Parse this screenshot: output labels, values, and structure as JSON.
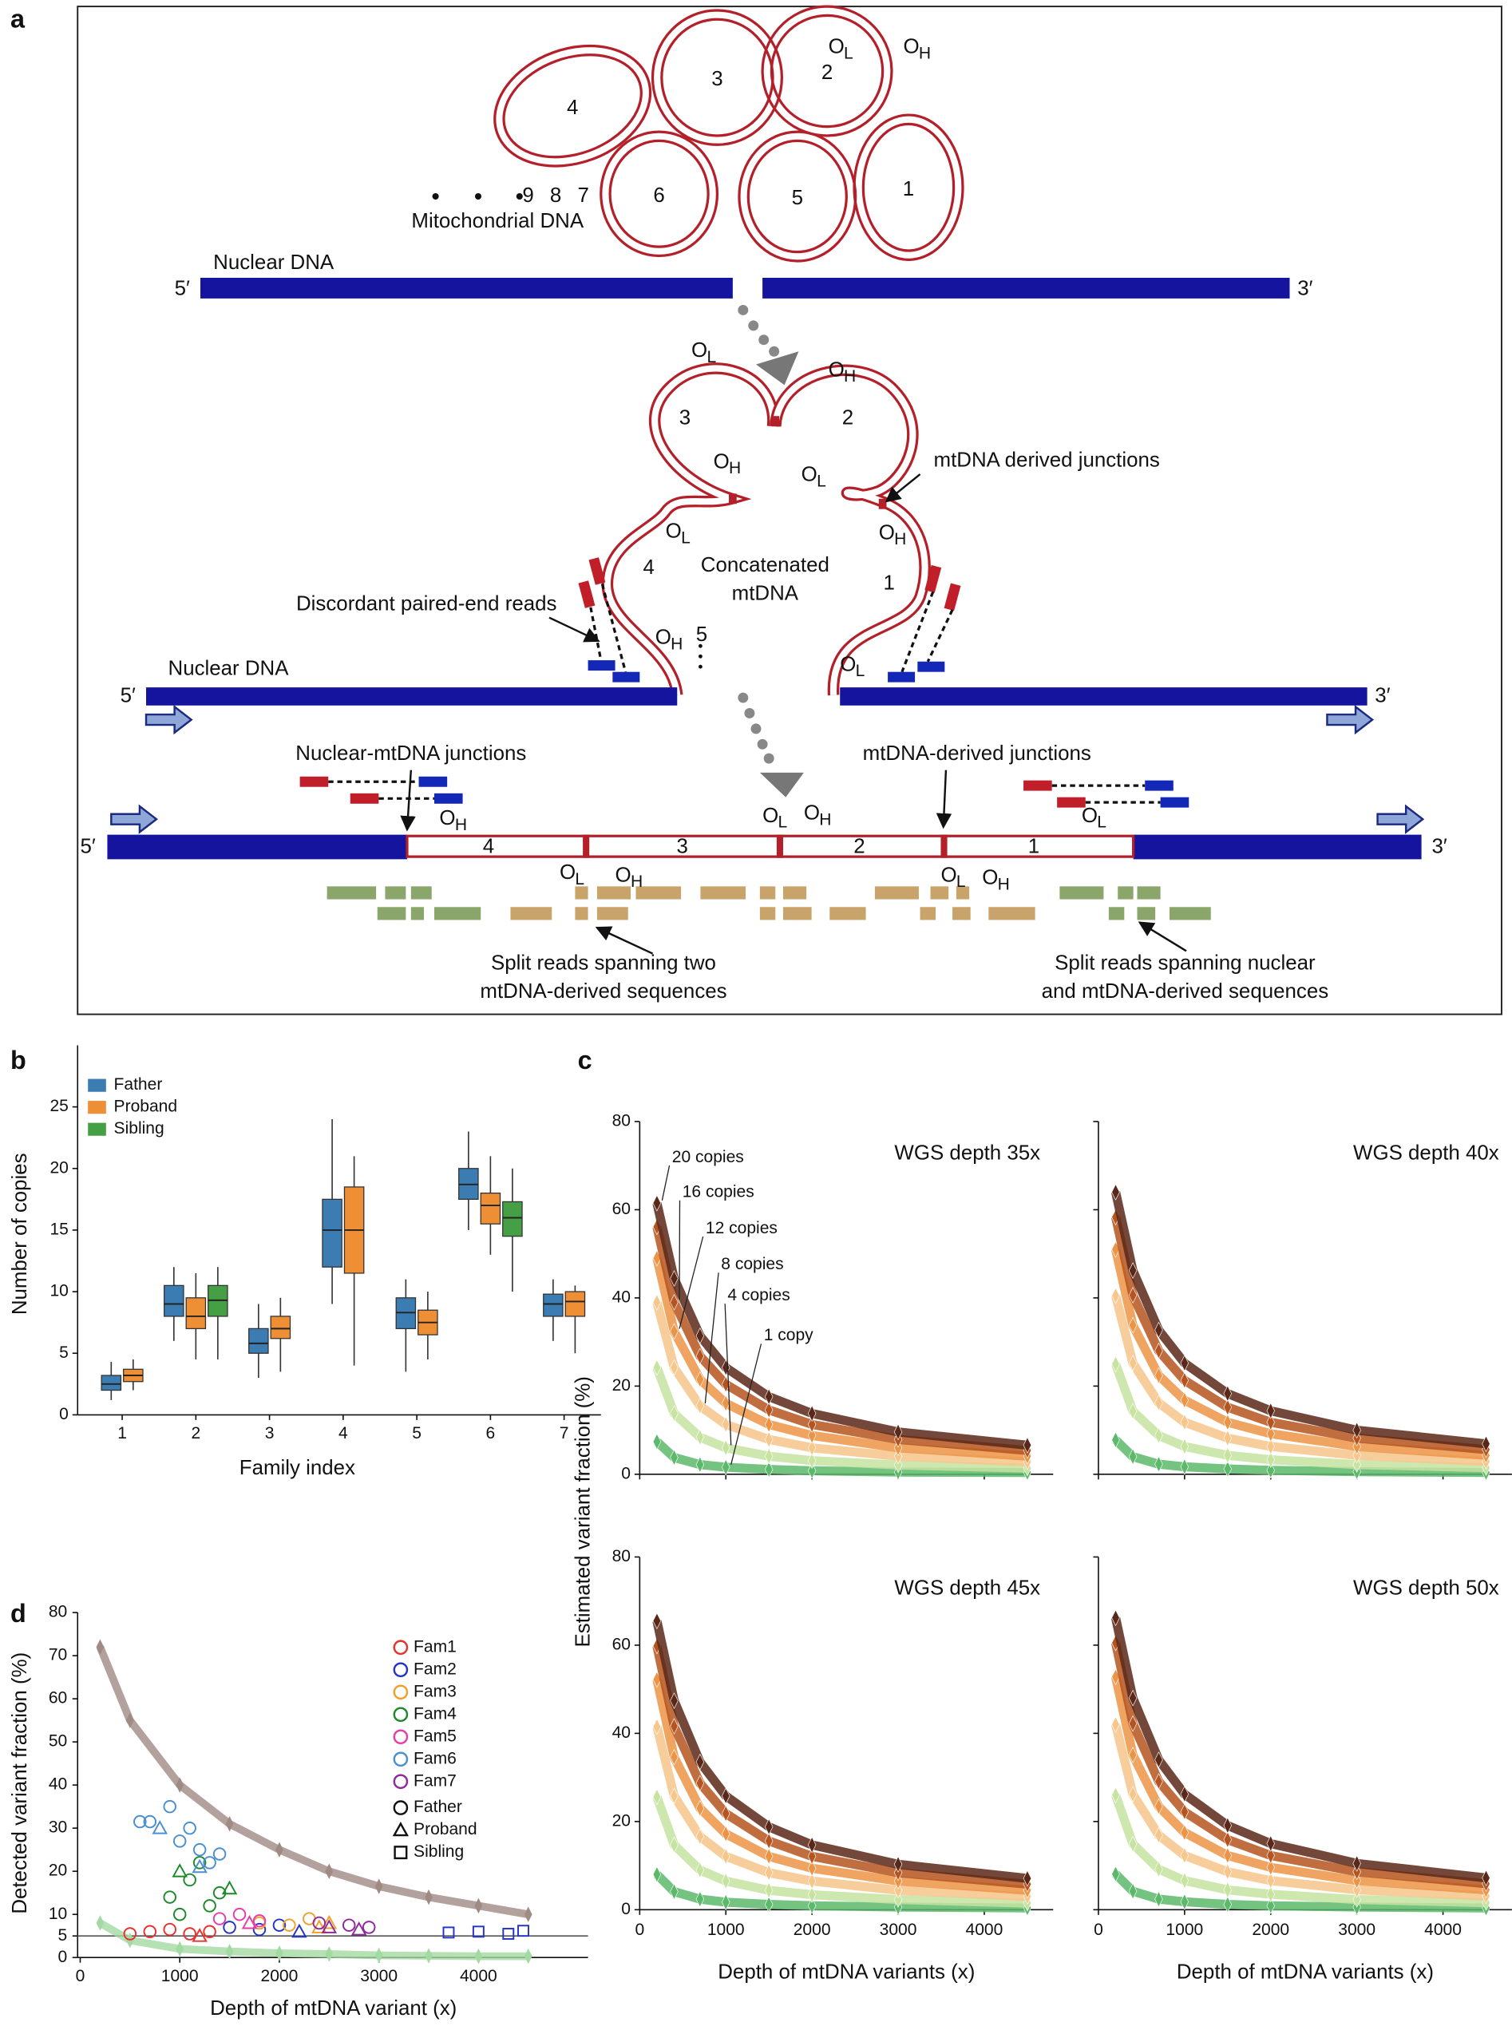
{
  "panel_a": {
    "label": "a",
    "rings": [
      "4",
      "3",
      "2",
      "6",
      "5",
      "1"
    ],
    "ring_more": "9 8 7",
    "mito_label": "Mitochondrial DNA",
    "nuclear_label": "Nuclear DNA",
    "five_prime": "5′",
    "three_prime": "3′",
    "loop_numbers": [
      "3",
      "2",
      "4",
      "1",
      "5"
    ],
    "concat": [
      "Concatenated",
      "mtDNA"
    ],
    "mt_junctions": "mtDNA derived junctions",
    "discordant": "Discordant paired-end reads",
    "nuc_mt_junctions": "Nuclear-mtDNA junctions",
    "mt_derived_junctions": "mtDNA-derived junctions",
    "segments": [
      "4",
      "3",
      "2",
      "1"
    ],
    "split_two": [
      "Split reads spanning two",
      "mtDNA-derived sequences"
    ],
    "split_nuclear": [
      "Split reads spanning nuclear",
      "and mtDNA-derived sequences"
    ],
    "origins": [
      {
        "main": "O",
        "sub": "L"
      },
      {
        "main": "O",
        "sub": "H"
      },
      {
        "main": "O",
        "sub": "L"
      },
      {
        "main": "O",
        "sub": "H"
      },
      {
        "main": "O",
        "sub": "H"
      },
      {
        "main": "O",
        "sub": "L"
      },
      {
        "main": "O",
        "sub": "L"
      },
      {
        "main": "O",
        "sub": "H"
      },
      {
        "main": "O",
        "sub": "H"
      },
      {
        "main": "O",
        "sub": "L"
      },
      {
        "main": "O",
        "sub": "H"
      },
      {
        "main": "O",
        "sub": "L"
      },
      {
        "main": "O",
        "sub": "H"
      },
      {
        "main": "O",
        "sub": "L"
      },
      {
        "main": "O",
        "sub": "L"
      },
      {
        "main": "O",
        "sub": "H"
      },
      {
        "main": "O",
        "sub": "L"
      },
      {
        "main": "O",
        "sub": "H"
      }
    ]
  },
  "chart_data": [
    {
      "type": "box",
      "label": "b",
      "xlabel": "Family index",
      "ylabel": "Number of copies",
      "categories": [
        "1",
        "2",
        "3",
        "4",
        "5",
        "6",
        "7"
      ],
      "ylim": [
        0,
        30
      ],
      "yticks": [
        0,
        5,
        10,
        15,
        20,
        25
      ],
      "legend": "upper left",
      "series": [
        {
          "name": "Father",
          "color": "#3b7db3",
          "values": [
            {
              "median": 2.5,
              "q1": 2,
              "q3": 3.2,
              "whislo": 1.2,
              "whishi": 4.3
            },
            {
              "median": 9,
              "q1": 8,
              "q3": 10.5,
              "whislo": 6,
              "whishi": 12
            },
            {
              "median": 5.8,
              "q1": 5,
              "q3": 7,
              "whislo": 3,
              "whishi": 9
            },
            {
              "median": 15,
              "q1": 12,
              "q3": 17.5,
              "whislo": 9,
              "whishi": 24
            },
            {
              "median": 8.3,
              "q1": 7,
              "q3": 9.5,
              "whislo": 3.5,
              "whishi": 11
            },
            {
              "median": 18.7,
              "q1": 17.5,
              "q3": 20,
              "whislo": 15,
              "whishi": 23
            },
            {
              "median": 9,
              "q1": 8,
              "q3": 9.8,
              "whislo": 6,
              "whishi": 11
            }
          ]
        },
        {
          "name": "Proband",
          "color": "#ef8f35",
          "values": [
            {
              "median": 3.2,
              "q1": 2.7,
              "q3": 3.7,
              "whislo": 2,
              "whishi": 4.5
            },
            {
              "median": 8,
              "q1": 7,
              "q3": 9.5,
              "whislo": 4.5,
              "whishi": 11.5
            },
            {
              "median": 7,
              "q1": 6.2,
              "q3": 8,
              "whislo": 3.5,
              "whishi": 9.5
            },
            {
              "median": 15,
              "q1": 11.5,
              "q3": 18.5,
              "whislo": 4,
              "whishi": 21
            },
            {
              "median": 7.5,
              "q1": 6.5,
              "q3": 8.5,
              "whislo": 4.5,
              "whishi": 10
            },
            {
              "median": 17,
              "q1": 15.5,
              "q3": 18,
              "whislo": 13,
              "whishi": 21
            },
            {
              "median": 9.2,
              "q1": 8,
              "q3": 10,
              "whislo": 5,
              "whishi": 10.5
            }
          ]
        },
        {
          "name": "Sibling",
          "color": "#45a045",
          "values": [
            null,
            {
              "median": 9.3,
              "q1": 8,
              "q3": 10.5,
              "whislo": 4.5,
              "whishi": 12
            },
            null,
            null,
            null,
            {
              "median": 16,
              "q1": 14.5,
              "q3": 17.3,
              "whislo": 10,
              "whishi": 20
            },
            null
          ]
        }
      ]
    },
    {
      "type": "curve-grid",
      "label": "c",
      "xlabel": "Depth of mtDNA variants (x)",
      "ylabel": "Estimated variant fraction (%)",
      "xlim": [
        0,
        4800
      ],
      "xticks": [
        0,
        1000,
        2000,
        3000,
        4000
      ],
      "ylim": [
        0,
        80
      ],
      "yticks": [
        0,
        20,
        40,
        60,
        80
      ],
      "depths": [
        200,
        400,
        700,
        1000,
        1500,
        2000,
        3000,
        4500
      ],
      "panels": [
        {
          "title": "WGS depth 35x",
          "annotations": [
            "20 copies",
            "16 copies",
            "12 copies",
            "8 copies",
            "4 copies",
            "1 copy"
          ],
          "series": [
            {
              "color": "#5cb86a",
              "values": [
                7.4,
                3.8,
                2.2,
                1.6,
                1.1,
                0.8,
                0.5,
                0.4
              ]
            },
            {
              "color": "#c6e3a0",
              "values": [
                24.2,
                13.8,
                8.4,
                6.0,
                4.1,
                3.1,
                2.1,
                1.4
              ]
            },
            {
              "color": "#f6c68a",
              "values": [
                39.0,
                24.2,
                15.5,
                11.3,
                7.9,
                6.0,
                4.1,
                2.8
              ]
            },
            {
              "color": "#ec9446",
              "values": [
                49.0,
                32.4,
                21.5,
                16.1,
                11.3,
                8.8,
                6.0,
                4.1
              ]
            },
            {
              "color": "#b5541f",
              "values": [
                56.1,
                39.0,
                26.8,
                20.4,
                14.6,
                11.3,
                7.9,
                5.4
              ]
            },
            {
              "color": "#5a2818",
              "values": [
                61.5,
                44.4,
                31.4,
                24.2,
                17.6,
                13.8,
                9.6,
                6.6
              ]
            }
          ]
        },
        {
          "title": "WGS depth 40x",
          "series": [
            {
              "color": "#5cb86a",
              "values": [
                7.8,
                4.0,
                2.3,
                1.7,
                1.2,
                0.9,
                0.6,
                0.4
              ]
            },
            {
              "color": "#c6e3a0",
              "values": [
                25.0,
                14.3,
                8.8,
                6.3,
                4.3,
                3.3,
                2.2,
                1.5
              ]
            },
            {
              "color": "#f6c68a",
              "values": [
                40.5,
                25.2,
                16.2,
                11.8,
                8.2,
                6.3,
                4.3,
                2.9
              ]
            },
            {
              "color": "#ec9446",
              "values": [
                51.0,
                33.8,
                22.4,
                16.8,
                11.8,
                9.2,
                6.3,
                4.3
              ]
            },
            {
              "color": "#b5541f",
              "values": [
                58.3,
                40.6,
                28.0,
                21.3,
                15.2,
                11.8,
                8.2,
                5.6
              ]
            },
            {
              "color": "#5a2818",
              "values": [
                64.0,
                46.2,
                32.7,
                25.2,
                18.3,
                14.4,
                10.0,
                6.9
              ]
            }
          ]
        },
        {
          "title": "WGS depth 45x",
          "series": [
            {
              "color": "#5cb86a",
              "values": [
                8.0,
                4.1,
                2.4,
                1.7,
                1.2,
                0.9,
                0.6,
                0.4
              ]
            },
            {
              "color": "#c6e3a0",
              "values": [
                25.6,
                14.7,
                9.0,
                6.5,
                4.4,
                3.4,
                2.3,
                1.5
              ]
            },
            {
              "color": "#f6c68a",
              "values": [
                41.5,
                25.8,
                16.6,
                12.1,
                8.4,
                6.5,
                4.4,
                3.0
              ]
            },
            {
              "color": "#ec9446",
              "values": [
                52.2,
                34.6,
                23.0,
                17.2,
                12.1,
                9.4,
                6.5,
                4.4
              ]
            },
            {
              "color": "#b5541f",
              "values": [
                59.8,
                41.6,
                28.7,
                21.8,
                15.6,
                12.1,
                8.4,
                5.8
              ]
            },
            {
              "color": "#5a2818",
              "values": [
                65.5,
                47.4,
                33.5,
                25.8,
                18.8,
                14.7,
                10.3,
                7.1
              ]
            }
          ]
        },
        {
          "title": "WGS depth 50x",
          "series": [
            {
              "color": "#5cb86a",
              "values": [
                8.1,
                4.2,
                2.4,
                1.8,
                1.2,
                0.9,
                0.6,
                0.4
              ]
            },
            {
              "color": "#c6e3a0",
              "values": [
                26.0,
                14.9,
                9.2,
                6.6,
                4.5,
                3.5,
                2.3,
                1.6
              ]
            },
            {
              "color": "#f6c68a",
              "values": [
                42.0,
                26.2,
                16.9,
                12.3,
                8.6,
                6.6,
                4.5,
                3.1
              ]
            },
            {
              "color": "#ec9446",
              "values": [
                52.8,
                35.1,
                23.4,
                17.5,
                12.3,
                9.6,
                6.6,
                4.5
              ]
            },
            {
              "color": "#b5541f",
              "values": [
                60.5,
                42.2,
                29.1,
                22.2,
                15.9,
                12.3,
                8.6,
                5.9
              ]
            },
            {
              "color": "#5a2818",
              "values": [
                66.2,
                48.0,
                34.0,
                26.2,
                19.1,
                15.0,
                10.5,
                7.2
              ]
            }
          ]
        }
      ]
    },
    {
      "type": "scatter",
      "label": "d",
      "xlabel": "Depth of mtDNA variant (x)",
      "ylabel": "Detected variant fraction (%)",
      "xlim": [
        0,
        5100
      ],
      "xticks": [
        0,
        1000,
        2000,
        3000,
        4000
      ],
      "ylim": [
        0,
        80
      ],
      "yticks": [
        0,
        5,
        10,
        20,
        30,
        40,
        50,
        60,
        70,
        80
      ],
      "hline": 5,
      "legend": "upper right",
      "members": [
        {
          "name": "Father",
          "shape": "circle"
        },
        {
          "name": "Proband",
          "shape": "triangle"
        },
        {
          "name": "Sibling",
          "shape": "square"
        }
      ],
      "curves": [
        {
          "color": "#a08a84",
          "x": [
            200,
            500,
            1000,
            1500,
            2000,
            2500,
            3000,
            3500,
            4000,
            4500
          ],
          "values": [
            72,
            55,
            40,
            31,
            25,
            20,
            16.5,
            14,
            12,
            10
          ]
        },
        {
          "color": "#a3d9a3",
          "x": [
            200,
            500,
            1000,
            1500,
            2000,
            2500,
            3000,
            3500,
            4000,
            4500
          ],
          "values": [
            8,
            4,
            2,
            1.4,
            1,
            0.8,
            0.5,
            0.4,
            0.3,
            0.3
          ]
        }
      ],
      "series": [
        {
          "name": "Fam1",
          "color": "#e8312c",
          "x": [
            500,
            700,
            900,
            1100,
            1300,
            1200
          ],
          "values": [
            5.5,
            6,
            6.5,
            5.5,
            6,
            5
          ],
          "members": [
            0,
            0,
            0,
            0,
            0,
            1
          ]
        },
        {
          "name": "Fam2",
          "color": "#2434c8",
          "x": [
            1500,
            1800,
            2000,
            2200,
            3700,
            4000,
            4300,
            4450
          ],
          "values": [
            7,
            6.5,
            7.5,
            6,
            5.8,
            6,
            5.5,
            6.2
          ],
          "members": [
            0,
            0,
            0,
            1,
            2,
            2,
            2,
            2
          ]
        },
        {
          "name": "Fam3",
          "color": "#f0a02a",
          "x": [
            1800,
            2100,
            2300,
            2500,
            2400
          ],
          "values": [
            8,
            7.5,
            9,
            8,
            7
          ],
          "members": [
            0,
            0,
            0,
            1,
            1
          ]
        },
        {
          "name": "Fam4",
          "color": "#1d8a2a",
          "x": [
            900,
            1100,
            1200,
            1300,
            1000,
            1400,
            1000,
            1500
          ],
          "values": [
            14,
            18,
            22,
            12,
            10,
            15,
            20,
            16
          ],
          "members": [
            0,
            0,
            0,
            0,
            0,
            0,
            1,
            1
          ]
        },
        {
          "name": "Fam5",
          "color": "#e53ea8",
          "x": [
            1400,
            1600,
            1800,
            1700
          ],
          "values": [
            9,
            10,
            8.5,
            8
          ],
          "members": [
            0,
            0,
            0,
            1
          ]
        },
        {
          "name": "Fam6",
          "color": "#4b8fd0",
          "x": [
            600,
            700,
            900,
            1000,
            1100,
            1200,
            1300,
            1400,
            800,
            1200
          ],
          "values": [
            31.5,
            31.5,
            35,
            27,
            30,
            25,
            22,
            24,
            30,
            21
          ],
          "members": [
            0,
            0,
            0,
            0,
            0,
            0,
            0,
            0,
            1,
            1
          ]
        },
        {
          "name": "Fam7",
          "color": "#8e2a9a",
          "x": [
            2400,
            2700,
            2900,
            2500,
            2800
          ],
          "values": [
            8,
            7.5,
            7,
            7,
            6.5
          ],
          "members": [
            0,
            0,
            0,
            1,
            1
          ]
        }
      ]
    }
  ]
}
